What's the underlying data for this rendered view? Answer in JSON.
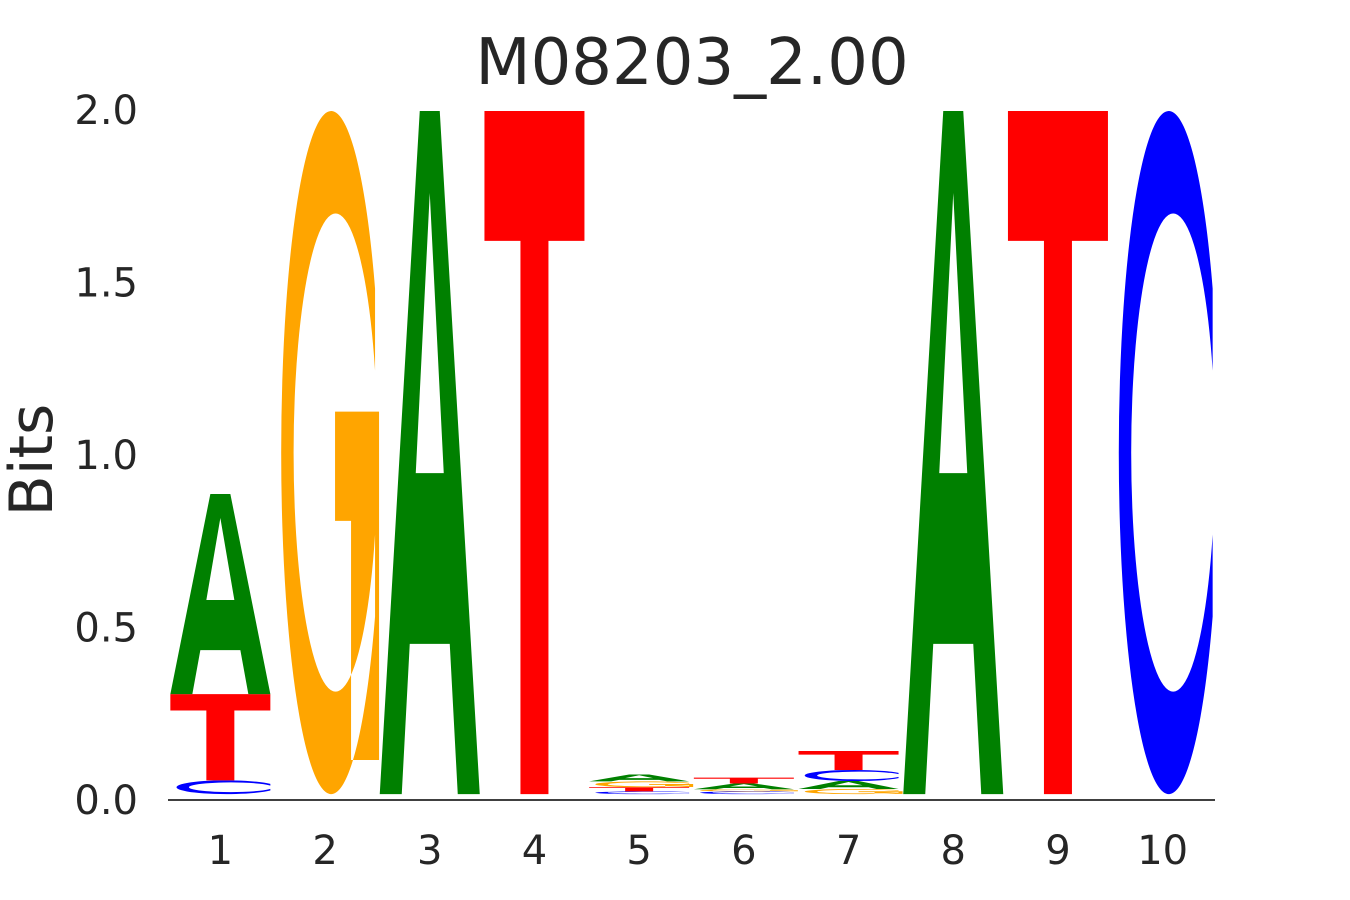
{
  "chart_data": {
    "type": "sequence-logo",
    "title": "M08203_2.00",
    "xlabel": "",
    "ylabel": "Bits",
    "ylim": [
      0,
      2.0
    ],
    "yticks": [
      "0.0",
      "0.5",
      "1.0",
      "1.5",
      "2.0"
    ],
    "ytick_values": [
      0,
      0.5,
      1.0,
      1.5,
      2.0
    ],
    "positions": [
      "1",
      "2",
      "3",
      "4",
      "5",
      "6",
      "7",
      "8",
      "9",
      "10"
    ],
    "colors": {
      "A": "#008000",
      "C": "#0000ff",
      "G": "#ffa500",
      "T": "#ff0000"
    },
    "stacks": [
      [
        [
          "C",
          0.04
        ],
        [
          "T",
          0.25
        ],
        [
          "A",
          0.58
        ]
      ],
      [
        [
          "G",
          1.98
        ]
      ],
      [
        [
          "A",
          1.98
        ]
      ],
      [
        [
          "T",
          1.98
        ]
      ],
      [
        [
          "C",
          0.008
        ],
        [
          "T",
          0.012
        ],
        [
          "G",
          0.017
        ],
        [
          "A",
          0.02
        ]
      ],
      [
        [
          "C",
          0.008
        ],
        [
          "G",
          0.006
        ],
        [
          "A",
          0.017
        ],
        [
          "T",
          0.017
        ]
      ],
      [
        [
          "G",
          0.015
        ],
        [
          "A",
          0.023
        ],
        [
          "C",
          0.032
        ],
        [
          "T",
          0.055
        ]
      ],
      [
        [
          "A",
          1.98
        ]
      ],
      [
        [
          "T",
          1.98
        ]
      ],
      [
        [
          "C",
          1.98
        ]
      ]
    ]
  }
}
